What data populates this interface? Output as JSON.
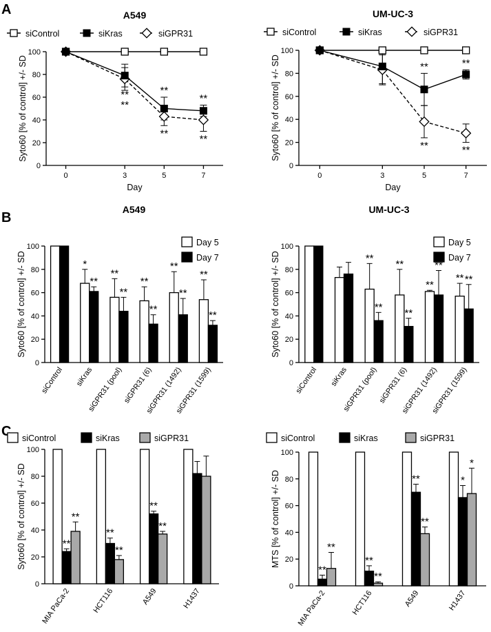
{
  "panels": [
    {
      "letter": "A"
    },
    {
      "letter": "B"
    },
    {
      "letter": "C"
    }
  ],
  "chart_data": [
    {
      "panel": "A",
      "type": "line",
      "title": "A549",
      "xlabel": "Day",
      "ylabel": "Syto60 [% of control] +/- SD",
      "x": [
        0,
        3,
        5,
        7
      ],
      "xticks": [
        "0",
        "3",
        "5",
        "7"
      ],
      "xlim": [
        -1,
        8
      ],
      "ylim": [
        0,
        100
      ],
      "yticks": [
        0,
        20,
        40,
        60,
        80,
        100
      ],
      "legend_position": "top",
      "series": [
        {
          "name": "siControl",
          "values": [
            100,
            100,
            100,
            100
          ],
          "sd": [
            0,
            0,
            0,
            0
          ],
          "marker": "open-square",
          "line": "solid"
        },
        {
          "name": "siKras",
          "values": [
            100,
            79,
            50,
            48
          ],
          "sd": [
            0,
            10,
            10,
            5
          ],
          "marker": "filled-square",
          "line": "solid"
        },
        {
          "name": "siGPR31",
          "values": [
            100,
            76,
            43,
            40
          ],
          "sd": [
            0,
            10,
            8,
            10
          ],
          "marker": "open-diamond",
          "line": "dashed"
        }
      ],
      "annotations": [
        {
          "x": 3,
          "text": "**",
          "pos": "below",
          "series": "siKras"
        },
        {
          "x": 3,
          "text": "**",
          "pos": "below2",
          "series": "siKras"
        },
        {
          "x": 5,
          "text": "**",
          "pos": "above",
          "series": "siKras"
        },
        {
          "x": 5,
          "text": "**",
          "pos": "below",
          "series": "siGPR31"
        },
        {
          "x": 7,
          "text": "**",
          "pos": "above",
          "series": "siKras"
        },
        {
          "x": 7,
          "text": "**",
          "pos": "below",
          "series": "siGPR31"
        }
      ]
    },
    {
      "panel": "A",
      "type": "line",
      "title": "UM-UC-3",
      "xlabel": "Day",
      "ylabel": "Syto60 [% of control] +/- SD",
      "x": [
        0,
        3,
        5,
        7
      ],
      "xticks": [
        "0",
        "3",
        "5",
        "7"
      ],
      "xlim": [
        -1,
        8
      ],
      "ylim": [
        0,
        100
      ],
      "yticks": [
        0,
        20,
        40,
        60,
        80,
        100
      ],
      "legend_position": "top",
      "series": [
        {
          "name": "siControl",
          "values": [
            100,
            100,
            100,
            100
          ],
          "sd": [
            0,
            0,
            0,
            0
          ],
          "marker": "open-square",
          "line": "solid"
        },
        {
          "name": "siKras",
          "values": [
            100,
            86,
            66,
            79
          ],
          "sd": [
            0,
            15,
            14,
            4
          ],
          "marker": "filled-square",
          "line": "solid"
        },
        {
          "name": "siGPR31",
          "values": [
            100,
            83,
            38,
            28
          ],
          "sd": [
            0,
            13,
            14,
            8
          ],
          "marker": "open-diamond",
          "line": "dashed"
        }
      ],
      "annotations": [
        {
          "x": 5,
          "text": "**",
          "pos": "above",
          "series": "siKras"
        },
        {
          "x": 5,
          "text": "**",
          "pos": "below",
          "series": "siGPR31"
        },
        {
          "x": 7,
          "text": "**",
          "pos": "above",
          "series": "siKras"
        },
        {
          "x": 7,
          "text": "**",
          "pos": "below",
          "series": "siGPR31"
        }
      ]
    },
    {
      "panel": "B",
      "type": "bar",
      "title": "A549",
      "ylabel": "Syto60 [% of control] +/- SD",
      "categories": [
        "siControl",
        "siKras",
        "siGPR31 (pool)",
        "siGPR31 (6)",
        "siGPR31 (1492)",
        "siGPR31 (1599)"
      ],
      "ylim": [
        0,
        100
      ],
      "yticks": [
        0,
        20,
        40,
        60,
        80,
        100
      ],
      "legend_position": "top-right",
      "series": [
        {
          "name": "Day 5",
          "fill": "#ffffff",
          "values": [
            100,
            68,
            56,
            53,
            60,
            54
          ],
          "sd": [
            0,
            12,
            16,
            12,
            18,
            17
          ],
          "labels": [
            "",
            "*",
            "**",
            "**",
            "**",
            "**"
          ]
        },
        {
          "name": "Day 7",
          "fill": "#000000",
          "values": [
            100,
            61,
            44,
            33,
            41,
            32
          ],
          "sd": [
            0,
            4,
            12,
            8,
            14,
            4
          ],
          "labels": [
            "",
            "**",
            "**",
            "**",
            "**",
            "**"
          ]
        }
      ]
    },
    {
      "panel": "B",
      "type": "bar",
      "title": "UM-UC-3",
      "ylabel": "Syto60 [% of control] +/- SD",
      "categories": [
        "siControl",
        "siKras",
        "siGPR31 (pool)",
        "siGPR31 (6)",
        "siGPR31 (1492)",
        "siGPR31 (1599)"
      ],
      "ylim": [
        0,
        100
      ],
      "yticks": [
        0,
        20,
        40,
        60,
        80,
        100
      ],
      "legend_position": "top-right",
      "series": [
        {
          "name": "Day 5",
          "fill": "#ffffff",
          "values": [
            100,
            73,
            63,
            58,
            61,
            57
          ],
          "sd": [
            0,
            9,
            22,
            22,
            1,
            11
          ],
          "labels": [
            "",
            "",
            "**",
            "**",
            "**",
            "**"
          ]
        },
        {
          "name": "Day 7",
          "fill": "#000000",
          "values": [
            100,
            76,
            36,
            31,
            58,
            46
          ],
          "sd": [
            0,
            10,
            7,
            7,
            21,
            21
          ],
          "labels": [
            "",
            "",
            "**",
            "**",
            "**",
            "**"
          ]
        }
      ]
    },
    {
      "panel": "C",
      "type": "bar",
      "title": "",
      "ylabel": "Syto60 [% of control] +/- SD",
      "categories": [
        "MIA PaCa-2",
        "HCT116",
        "A549",
        "H1437"
      ],
      "ylim": [
        0,
        100
      ],
      "yticks": [
        0,
        20,
        40,
        60,
        80,
        100
      ],
      "legend_position": "top",
      "series": [
        {
          "name": "siControl",
          "fill": "#ffffff",
          "values": [
            100,
            100,
            100,
            100
          ],
          "sd": [
            0,
            0,
            0,
            0
          ],
          "labels": [
            "",
            "",
            "",
            ""
          ]
        },
        {
          "name": "siKras",
          "fill": "#000000",
          "values": [
            24,
            30,
            52,
            82
          ],
          "sd": [
            2,
            4,
            2,
            9
          ],
          "labels": [
            "**",
            "**",
            "**",
            ""
          ]
        },
        {
          "name": "siGPR31",
          "fill": "#a9a9a9",
          "values": [
            39,
            18,
            37,
            80
          ],
          "sd": [
            7,
            3,
            2,
            15
          ],
          "labels": [
            "**",
            "**",
            "**",
            ""
          ]
        }
      ]
    },
    {
      "panel": "C",
      "type": "bar",
      "title": "",
      "ylabel": "MTS [% of control] +/- SD",
      "categories": [
        "MIA PaCa-2",
        "HCT116",
        "A549",
        "H1437"
      ],
      "ylim": [
        0,
        100
      ],
      "yticks": [
        0,
        20,
        40,
        60,
        80,
        100
      ],
      "legend_position": "top",
      "series": [
        {
          "name": "siControl",
          "fill": "#ffffff",
          "values": [
            100,
            100,
            100,
            100
          ],
          "sd": [
            0,
            0,
            0,
            0
          ],
          "labels": [
            "",
            "",
            "",
            ""
          ]
        },
        {
          "name": "siKras",
          "fill": "#000000",
          "values": [
            5,
            11,
            70,
            66
          ],
          "sd": [
            3,
            4,
            6,
            9
          ],
          "labels": [
            "**",
            "**",
            "**",
            "*"
          ]
        },
        {
          "name": "siGPR31",
          "fill": "#a9a9a9",
          "values": [
            13,
            2,
            39,
            69
          ],
          "sd": [
            12,
            1,
            5,
            19
          ],
          "labels": [
            "**",
            "**",
            "**",
            "*"
          ]
        }
      ]
    }
  ]
}
